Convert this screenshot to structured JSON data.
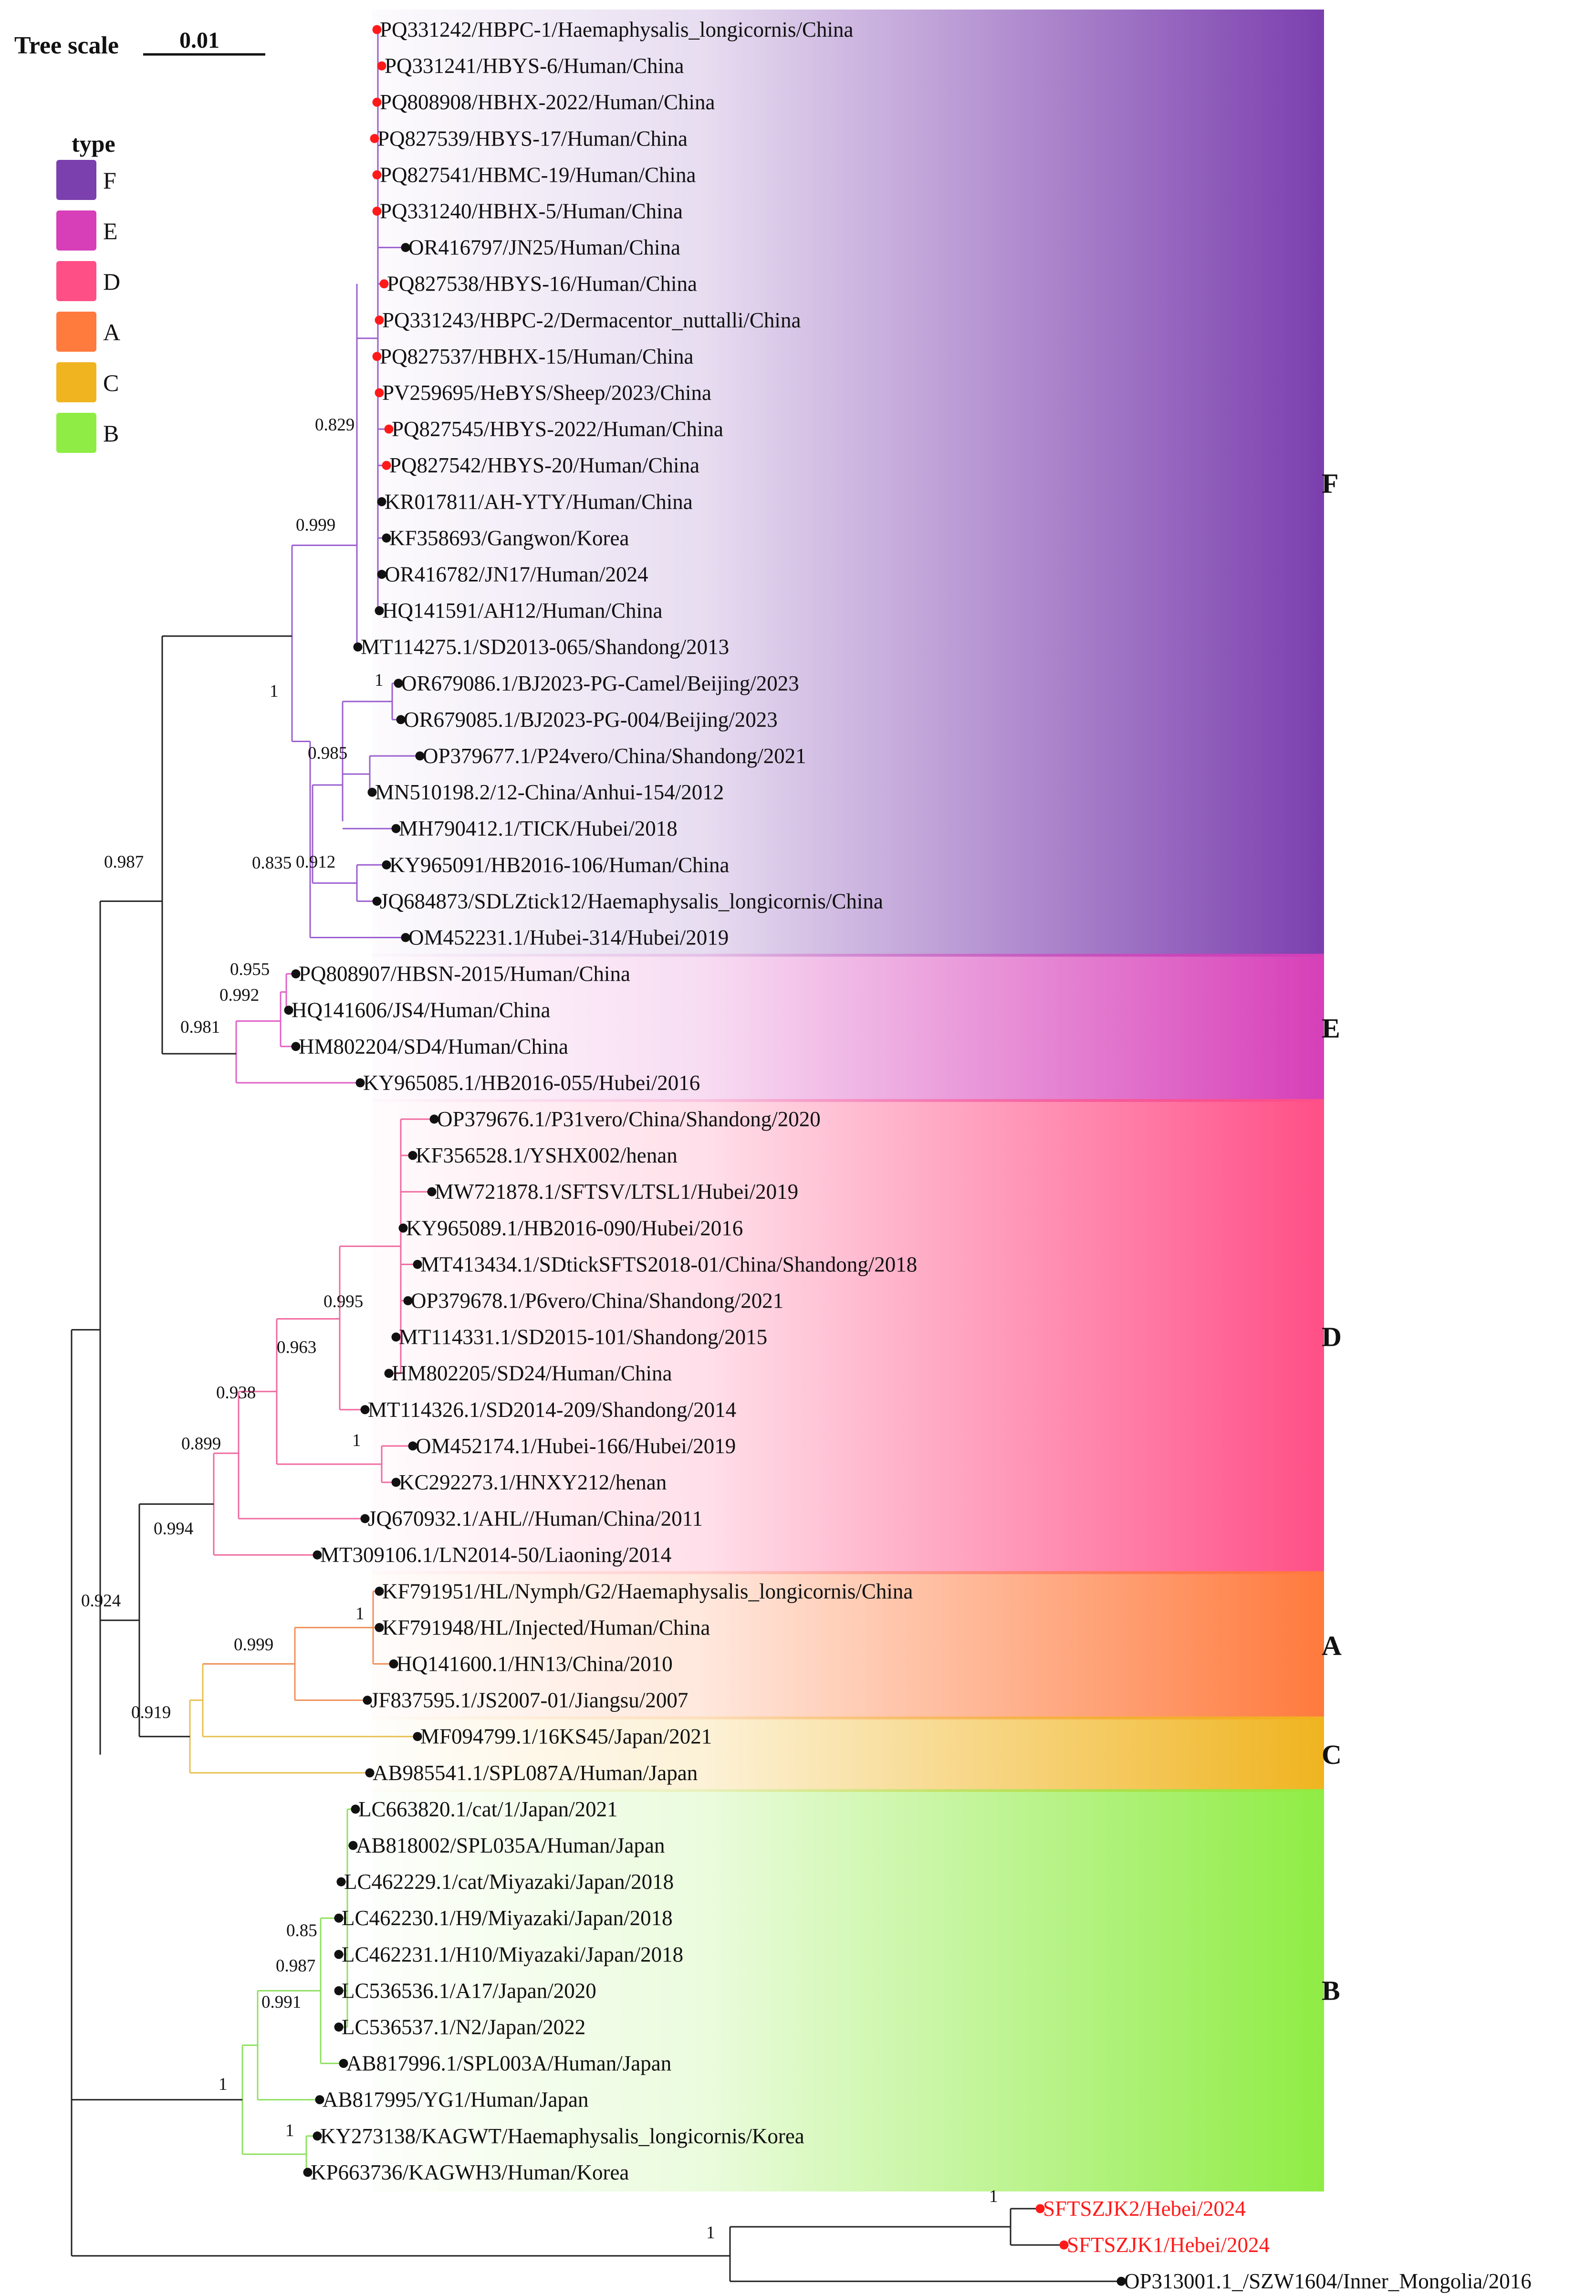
{
  "scale": {
    "title": "Tree scale",
    "value": "0.01"
  },
  "legend": {
    "title": "type",
    "items": [
      {
        "label": "F",
        "color": "#7b3fae"
      },
      {
        "label": "E",
        "color": "#d63fb8"
      },
      {
        "label": "D",
        "color": "#ff4f87"
      },
      {
        "label": "A",
        "color": "#ff7a3d"
      },
      {
        "label": "C",
        "color": "#f0b420"
      },
      {
        "label": "B",
        "color": "#8fec44"
      }
    ]
  },
  "clades": [
    {
      "label": "F",
      "color": "#7b3fae",
      "line": "#9a5fd0"
    },
    {
      "label": "E",
      "color": "#d63fb8",
      "line": "#e060c8"
    },
    {
      "label": "D",
      "color": "#ff4f87",
      "line": "#f06aa0"
    },
    {
      "label": "A",
      "color": "#ff7a3d",
      "line": "#f0905a"
    },
    {
      "label": "C",
      "color": "#f0b420",
      "line": "#e8c050"
    },
    {
      "label": "B",
      "color": "#8fec44",
      "line": "#8fe060"
    }
  ],
  "leaves": [
    {
      "label": "PQ331242/HBPC-1/Haemaphysalis_longicornis/China",
      "dot": "red",
      "clade": "F"
    },
    {
      "label": "PQ331241/HBYS-6/Human/China",
      "dot": "red",
      "clade": "F"
    },
    {
      "label": "PQ808908/HBHX-2022/Human/China",
      "dot": "red",
      "clade": "F"
    },
    {
      "label": "PQ827539/HBYS-17/Human/China",
      "dot": "red",
      "clade": "F"
    },
    {
      "label": "PQ827541/HBMC-19/Human/China",
      "dot": "red",
      "clade": "F"
    },
    {
      "label": "PQ331240/HBHX-5/Human/China",
      "dot": "red",
      "clade": "F"
    },
    {
      "label": "OR416797/JN25/Human/China",
      "dot": "black",
      "clade": "F"
    },
    {
      "label": "PQ827538/HBYS-16/Human/China",
      "dot": "red",
      "clade": "F"
    },
    {
      "label": "PQ331243/HBPC-2/Dermacentor_nuttalli/China",
      "dot": "red",
      "clade": "F"
    },
    {
      "label": "PQ827537/HBHX-15/Human/China",
      "dot": "red",
      "clade": "F"
    },
    {
      "label": "PV259695/HeBYS/Sheep/2023/China",
      "dot": "red",
      "clade": "F"
    },
    {
      "label": "PQ827545/HBYS-2022/Human/China",
      "dot": "red",
      "clade": "F"
    },
    {
      "label": "PQ827542/HBYS-20/Human/China",
      "dot": "red",
      "clade": "F"
    },
    {
      "label": "KR017811/AH-YTY/Human/China",
      "dot": "black",
      "clade": "F"
    },
    {
      "label": "KF358693/Gangwon/Korea",
      "dot": "black",
      "clade": "F"
    },
    {
      "label": "OR416782/JN17/Human/2024",
      "dot": "black",
      "clade": "F"
    },
    {
      "label": "HQ141591/AH12/Human/China",
      "dot": "black",
      "clade": "F"
    },
    {
      "label": "MT114275.1/SD2013-065/Shandong/2013",
      "dot": "black",
      "clade": "F"
    },
    {
      "label": "OR679086.1/BJ2023-PG-Camel/Beijing/2023",
      "dot": "black",
      "clade": "F"
    },
    {
      "label": "OR679085.1/BJ2023-PG-004/Beijing/2023",
      "dot": "black",
      "clade": "F"
    },
    {
      "label": "OP379677.1/P24vero/China/Shandong/2021",
      "dot": "black",
      "clade": "F"
    },
    {
      "label": "MN510198.2/12-China/Anhui-154/2012",
      "dot": "black",
      "clade": "F"
    },
    {
      "label": "MH790412.1/TICK/Hubei/2018",
      "dot": "black",
      "clade": "F"
    },
    {
      "label": "KY965091/HB2016-106/Human/China",
      "dot": "black",
      "clade": "F"
    },
    {
      "label": "JQ684873/SDLZtick12/Haemaphysalis_longicornis/China",
      "dot": "black",
      "clade": "F"
    },
    {
      "label": "OM452231.1/Hubei-314/Hubei/2019",
      "dot": "black",
      "clade": "F"
    },
    {
      "label": "PQ808907/HBSN-2015/Human/China",
      "dot": "black",
      "clade": "E"
    },
    {
      "label": "HQ141606/JS4/Human/China",
      "dot": "black",
      "clade": "E"
    },
    {
      "label": "HM802204/SD4/Human/China",
      "dot": "black",
      "clade": "E"
    },
    {
      "label": "KY965085.1/HB2016-055/Hubei/2016",
      "dot": "black",
      "clade": "E"
    },
    {
      "label": "OP379676.1/P31vero/China/Shandong/2020",
      "dot": "black",
      "clade": "D"
    },
    {
      "label": "KF356528.1/YSHX002/henan",
      "dot": "black",
      "clade": "D"
    },
    {
      "label": "MW721878.1/SFTSV/LTSL1/Hubei/2019",
      "dot": "black",
      "clade": "D"
    },
    {
      "label": "KY965089.1/HB2016-090/Hubei/2016",
      "dot": "black",
      "clade": "D"
    },
    {
      "label": "MT413434.1/SDtickSFTS2018-01/China/Shandong/2018",
      "dot": "black",
      "clade": "D"
    },
    {
      "label": "OP379678.1/P6vero/China/Shandong/2021",
      "dot": "black",
      "clade": "D"
    },
    {
      "label": "MT114331.1/SD2015-101/Shandong/2015",
      "dot": "black",
      "clade": "D"
    },
    {
      "label": "HM802205/SD24/Human/China",
      "dot": "black",
      "clade": "D"
    },
    {
      "label": "MT114326.1/SD2014-209/Shandong/2014",
      "dot": "black",
      "clade": "D"
    },
    {
      "label": "OM452174.1/Hubei-166/Hubei/2019",
      "dot": "black",
      "clade": "D"
    },
    {
      "label": "KC292273.1/HNXY212/henan",
      "dot": "black",
      "clade": "D"
    },
    {
      "label": "JQ670932.1/AHL//Human/China/2011",
      "dot": "black",
      "clade": "D"
    },
    {
      "label": "MT309106.1/LN2014-50/Liaoning/2014",
      "dot": "black",
      "clade": "D"
    },
    {
      "label": "KF791951/HL/Nymph/G2/Haemaphysalis_longicornis/China",
      "dot": "black",
      "clade": "A"
    },
    {
      "label": "KF791948/HL/Injected/Human/China",
      "dot": "black",
      "clade": "A"
    },
    {
      "label": "HQ141600.1/HN13/China/2010",
      "dot": "black",
      "clade": "A"
    },
    {
      "label": "JF837595.1/JS2007-01/Jiangsu/2007",
      "dot": "black",
      "clade": "A"
    },
    {
      "label": "MF094799.1/16KS45/Japan/2021",
      "dot": "black",
      "clade": "C"
    },
    {
      "label": "AB985541.1/SPL087A/Human/Japan",
      "dot": "black",
      "clade": "C"
    },
    {
      "label": "LC663820.1/cat/1/Japan/2021",
      "dot": "black",
      "clade": "B"
    },
    {
      "label": "AB818002/SPL035A/Human/Japan",
      "dot": "black",
      "clade": "B"
    },
    {
      "label": "LC462229.1/cat/Miyazaki/Japan/2018",
      "dot": "black",
      "clade": "B"
    },
    {
      "label": "LC462230.1/H9/Miyazaki/Japan/2018",
      "dot": "black",
      "clade": "B"
    },
    {
      "label": "LC462231.1/H10/Miyazaki/Japan/2018",
      "dot": "black",
      "clade": "B"
    },
    {
      "label": "LC536536.1/A17/Japan/2020",
      "dot": "black",
      "clade": "B"
    },
    {
      "label": "LC536537.1/N2/Japan/2022",
      "dot": "black",
      "clade": "B"
    },
    {
      "label": "AB817996.1/SPL003A/Human/Japan",
      "dot": "black",
      "clade": "B"
    },
    {
      "label": "AB817995/YG1/Human/Japan",
      "dot": "black",
      "clade": "B"
    },
    {
      "label": "KY273138/KAGWT/Haemaphysalis_longicornis/Korea",
      "dot": "black",
      "clade": "B"
    },
    {
      "label": "KP663736/KAGWH3/Human/Korea",
      "dot": "black",
      "clade": "B"
    },
    {
      "label": "SFTSZJK2/Hebei/2024",
      "dot": "red",
      "clade": "",
      "red_label": true
    },
    {
      "label": "SFTSZJK1/Hebei/2024",
      "dot": "red",
      "clade": "",
      "red_label": true
    },
    {
      "label": "OP313001.1_/SZW1604/Inner_Mongolia/2016",
      "dot": "black",
      "clade": ""
    }
  ],
  "support_values": [
    "0.829",
    "0.999",
    "1",
    "1",
    "0.985",
    "0.835",
    "0.912",
    "0.987",
    "0.955",
    "0.992",
    "0.981",
    "0.995",
    "0.963",
    "0.938",
    "1",
    "0.899",
    "0.994",
    "1",
    "0.999",
    "0.924",
    "0.919",
    "0.85",
    "0.987",
    "0.991",
    "1",
    "1",
    "1",
    "1"
  ]
}
